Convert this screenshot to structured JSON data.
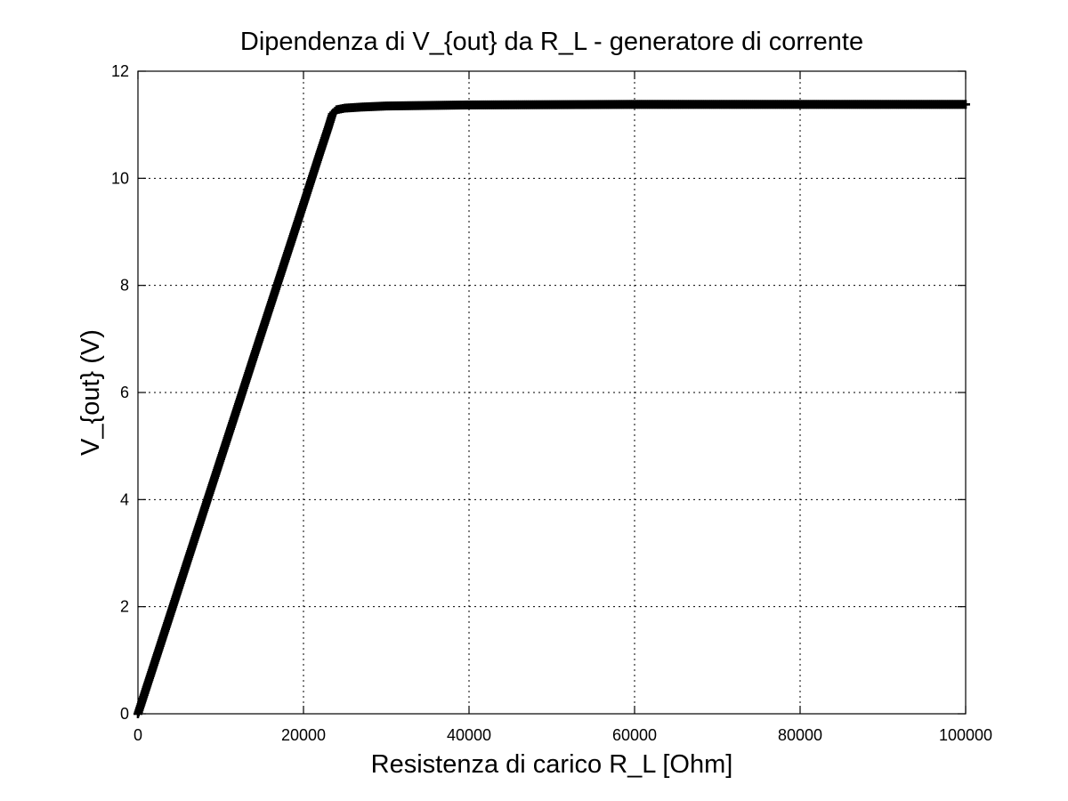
{
  "chart_data": {
    "type": "scatter",
    "title": "Dipendenza di V_{out} da R_L - generatore di corrente",
    "xlabel": "Resistenza di carico R_L [Ohm]",
    "ylabel": "V_{out} (V)",
    "xlim": [
      0,
      100000
    ],
    "ylim": [
      0,
      12
    ],
    "x_ticks": [
      0,
      20000,
      40000,
      60000,
      80000,
      100000
    ],
    "x_tick_labels": [
      "0",
      "20000",
      "40000",
      "60000",
      "80000",
      "100000"
    ],
    "y_ticks": [
      0,
      2,
      4,
      6,
      8,
      10,
      12
    ],
    "y_tick_labels": [
      "0",
      "2",
      "4",
      "6",
      "8",
      "10",
      "12"
    ],
    "grid": true,
    "marker": "plus",
    "color": "#000000",
    "series": [
      {
        "points": [
          [
            0,
            0
          ],
          [
            2000,
            0.95
          ],
          [
            4000,
            1.9
          ],
          [
            6000,
            2.86
          ],
          [
            8000,
            3.81
          ],
          [
            10000,
            4.76
          ],
          [
            12000,
            5.71
          ],
          [
            14000,
            6.67
          ],
          [
            16000,
            7.62
          ],
          [
            18000,
            8.57
          ],
          [
            20000,
            9.52
          ],
          [
            22000,
            10.48
          ],
          [
            23000,
            10.95
          ],
          [
            23500,
            11.2
          ],
          [
            24000,
            11.28
          ],
          [
            25000,
            11.31
          ],
          [
            27000,
            11.33
          ],
          [
            30000,
            11.35
          ],
          [
            35000,
            11.36
          ],
          [
            40000,
            11.37
          ],
          [
            60000,
            11.38
          ],
          [
            80000,
            11.38
          ],
          [
            100000,
            11.38
          ]
        ]
      }
    ]
  }
}
